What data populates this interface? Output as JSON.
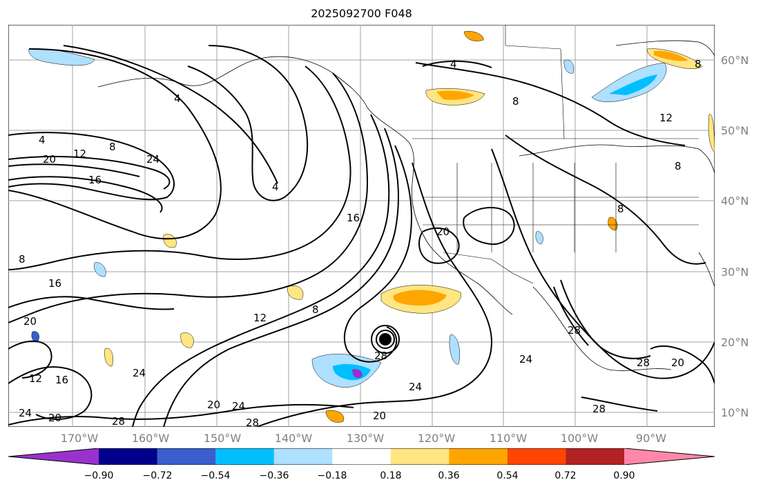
{
  "title": "2025092700 F048",
  "lat_labels": [
    "60°N",
    "50°N",
    "40°N",
    "30°N",
    "20°N",
    "10°N"
  ],
  "lon_labels": [
    "170°W",
    "160°W",
    "150°W",
    "140°W",
    "130°W",
    "120°W",
    "110°W",
    "100°W",
    "90°W"
  ],
  "colorbar": {
    "ticks": [
      "−0.90",
      "−0.72",
      "−0.54",
      "−0.36",
      "−0.18",
      "0.18",
      "0.36",
      "0.54",
      "0.72",
      "0.90"
    ],
    "colors": [
      "#9932cc",
      "#00008b",
      "#3a5fcd",
      "#00bfff",
      "#aee0ff",
      "#ffffff",
      "#ffe680",
      "#ffa500",
      "#ff4500",
      "#b22222",
      "#ff88aa"
    ]
  },
  "contour_labels": [
    "4",
    "8",
    "12",
    "16",
    "20",
    "24",
    "28"
  ],
  "colors": {
    "contour": "#000000",
    "grid": "#a0a0a0",
    "axis_label": "#808080"
  }
}
